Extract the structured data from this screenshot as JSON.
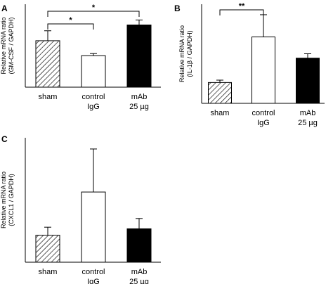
{
  "chart_data": [
    {
      "panel": "A",
      "type": "bar",
      "ylabel": [
        "Relative mRNA ratio",
        "(GM-CSF / GAPDH)"
      ],
      "ylim": [
        0,
        2
      ],
      "categories": [
        [
          "sham"
        ],
        [
          "control",
          "IgG"
        ],
        [
          "mAb",
          "25 µg"
        ]
      ],
      "values": [
        1.12,
        0.76,
        1.5
      ],
      "errors": [
        0.24,
        0.05,
        0.12
      ],
      "fills": [
        "hatch",
        "white",
        "black"
      ],
      "significance": [
        {
          "from": 0,
          "to": 1,
          "label": "*"
        },
        {
          "from": 0,
          "to": 2,
          "label": "*"
        }
      ]
    },
    {
      "panel": "B",
      "type": "bar",
      "ylabel": [
        "Relative mRNA ratio",
        "(IL-1β / GAPDH)"
      ],
      "ylim": [
        0,
        5
      ],
      "categories": [
        [
          "sham"
        ],
        [
          "control",
          "IgG"
        ],
        [
          "mAb",
          "25 µg"
        ]
      ],
      "values": [
        1.05,
        3.35,
        2.28
      ],
      "errors": [
        0.12,
        1.12,
        0.22
      ],
      "fills": [
        "hatch",
        "white",
        "black"
      ],
      "significance": [
        {
          "from": 0,
          "to": 1,
          "label": "**"
        }
      ]
    },
    {
      "panel": "C",
      "type": "bar",
      "ylabel": [
        "Relative mRNA ratio",
        "(CXCL1 / GAPDH)"
      ],
      "ylim": [
        0,
        7
      ],
      "categories": [
        [
          "sham"
        ],
        [
          "control",
          "IgG"
        ],
        [
          "mAb",
          "25 µg"
        ]
      ],
      "values": [
        1.52,
        3.95,
        1.88
      ],
      "errors": [
        0.45,
        2.42,
        0.58
      ],
      "fills": [
        "hatch",
        "white",
        "black"
      ],
      "significance": []
    }
  ]
}
